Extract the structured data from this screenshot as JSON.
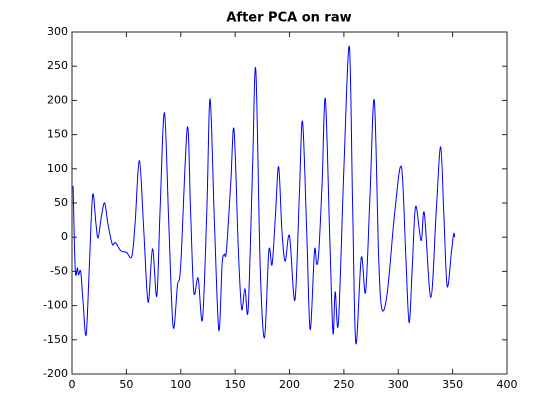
{
  "chart_data": {
    "type": "line",
    "title": "After PCA on raw",
    "x": [
      1,
      3,
      5,
      6,
      8,
      10,
      13,
      16,
      19,
      22,
      24,
      27,
      30,
      33,
      37,
      40,
      45,
      50,
      55,
      58,
      62,
      66,
      70,
      74,
      78,
      81,
      85,
      89,
      93,
      97,
      100,
      106,
      109,
      112,
      116,
      120,
      124,
      127,
      131,
      135,
      138,
      140,
      142,
      146,
      149,
      153,
      156,
      159,
      162,
      166,
      169,
      173,
      177,
      181,
      184,
      187,
      190,
      193,
      196,
      200,
      205,
      209,
      212,
      216,
      219,
      223,
      225,
      227,
      230,
      233,
      237,
      240,
      242,
      245,
      250,
      255,
      258,
      261,
      266,
      270,
      274,
      278,
      282,
      285,
      290,
      297,
      303,
      307,
      310,
      313,
      316,
      321,
      324,
      330,
      335,
      339,
      342,
      345,
      349,
      351,
      352
    ],
    "series": [
      {
        "name": "raw",
        "color": "#0000ff",
        "values": [
          75,
          -48,
          -45,
          -55,
          -50,
          -90,
          -143,
          -40,
          62,
          20,
          -1,
          30,
          50,
          20,
          -10,
          -8,
          -20,
          -22,
          -28,
          20,
          112,
          10,
          -95,
          -17,
          -86,
          40,
          182,
          20,
          -131,
          -70,
          -40,
          160,
          40,
          -80,
          -60,
          -120,
          40,
          202,
          20,
          -136,
          -40,
          -25,
          -20,
          80,
          157,
          -20,
          -105,
          -75,
          -105,
          100,
          245,
          -40,
          -147,
          -20,
          -40,
          30,
          103,
          10,
          -35,
          2,
          -92,
          60,
          169,
          0,
          -135,
          -20,
          -40,
          -20,
          80,
          202,
          0,
          -140,
          -80,
          -125,
          100,
          279,
          50,
          -155,
          -30,
          -80,
          60,
          200,
          -30,
          -105,
          -80,
          40,
          102,
          -30,
          -125,
          -40,
          45,
          -5,
          35,
          -88,
          40,
          132,
          30,
          -72,
          -20,
          5,
          0
        ]
      }
    ],
    "xlim": [
      0,
      400
    ],
    "xticks": [
      0,
      50,
      100,
      150,
      200,
      250,
      300,
      350,
      400
    ],
    "ylim": [
      -200,
      300
    ],
    "yticks": [
      -200,
      -150,
      -100,
      -50,
      0,
      50,
      100,
      150,
      200,
      250,
      300
    ]
  }
}
